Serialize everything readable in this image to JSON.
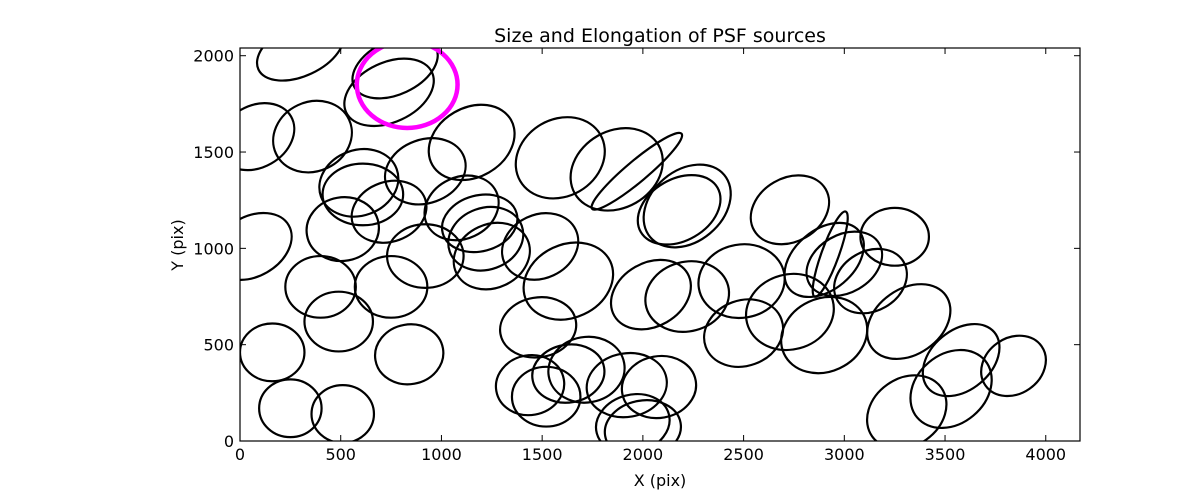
{
  "chart_data": {
    "type": "scatter",
    "marker": "ellipse",
    "title": "Size and Elongation of PSF sources",
    "xlabel": "X (pix)",
    "ylabel": "Y (pix)",
    "xlim": [
      0,
      4170
    ],
    "ylim": [
      0,
      2040
    ],
    "xticks": [
      0,
      500,
      1000,
      1500,
      2000,
      2500,
      3000,
      3500,
      4000
    ],
    "yticks": [
      0,
      500,
      1000,
      1500,
      2000
    ],
    "grid": false,
    "colors": {
      "sources": "#000000",
      "highlight": "#ff00ff"
    },
    "sources": [
      {
        "x": 300,
        "y": 2030,
        "w": 460,
        "h": 270,
        "angle": -25
      },
      {
        "x": 770,
        "y": 1940,
        "w": 450,
        "h": 280,
        "angle": -25
      },
      {
        "x": 740,
        "y": 1810,
        "w": 470,
        "h": 310,
        "angle": -25
      },
      {
        "x": 80,
        "y": 1580,
        "w": 400,
        "h": 320,
        "angle": -30
      },
      {
        "x": 360,
        "y": 1580,
        "w": 400,
        "h": 360,
        "angle": -25
      },
      {
        "x": 1150,
        "y": 1550,
        "w": 450,
        "h": 360,
        "angle": -30
      },
      {
        "x": 920,
        "y": 1400,
        "w": 410,
        "h": 330,
        "angle": -20
      },
      {
        "x": 590,
        "y": 1340,
        "w": 400,
        "h": 340,
        "angle": -20
      },
      {
        "x": 610,
        "y": 1280,
        "w": 400,
        "h": 320,
        "angle": 0
      },
      {
        "x": 740,
        "y": 1190,
        "w": 380,
        "h": 310,
        "angle": -20
      },
      {
        "x": 1100,
        "y": 1210,
        "w": 380,
        "h": 320,
        "angle": -25
      },
      {
        "x": 1190,
        "y": 1130,
        "w": 380,
        "h": 290,
        "angle": -15
      },
      {
        "x": 1220,
        "y": 1050,
        "w": 380,
        "h": 320,
        "angle": -20
      },
      {
        "x": 1250,
        "y": 960,
        "w": 390,
        "h": 330,
        "angle": -25
      },
      {
        "x": 510,
        "y": 1100,
        "w": 360,
        "h": 330,
        "angle": -10
      },
      {
        "x": 920,
        "y": 960,
        "w": 380,
        "h": 330,
        "angle": 0
      },
      {
        "x": 60,
        "y": 1010,
        "w": 420,
        "h": 310,
        "angle": -30
      },
      {
        "x": 400,
        "y": 800,
        "w": 350,
        "h": 320,
        "angle": 0
      },
      {
        "x": 750,
        "y": 800,
        "w": 360,
        "h": 320,
        "angle": 0
      },
      {
        "x": 490,
        "y": 620,
        "w": 340,
        "h": 310,
        "angle": 0
      },
      {
        "x": 1490,
        "y": 1010,
        "w": 390,
        "h": 330,
        "angle": -25
      },
      {
        "x": 1630,
        "y": 830,
        "w": 460,
        "h": 380,
        "angle": -25
      },
      {
        "x": 1480,
        "y": 590,
        "w": 380,
        "h": 310,
        "angle": -10
      },
      {
        "x": 1590,
        "y": 1470,
        "w": 460,
        "h": 400,
        "angle": -30
      },
      {
        "x": 1870,
        "y": 1410,
        "w": 480,
        "h": 400,
        "angle": -30
      },
      {
        "x": 1970,
        "y": 1400,
        "w": 580,
        "h": 110,
        "angle": -40
      },
      {
        "x": 2220,
        "y": 1220,
        "w": 480,
        "h": 370,
        "angle": -40
      },
      {
        "x": 2180,
        "y": 1200,
        "w": 440,
        "h": 320,
        "angle": -30
      },
      {
        "x": 2730,
        "y": 1200,
        "w": 410,
        "h": 330,
        "angle": -30
      },
      {
        "x": 3250,
        "y": 1060,
        "w": 340,
        "h": 300,
        "angle": 0
      },
      {
        "x": 2900,
        "y": 940,
        "w": 450,
        "h": 310,
        "angle": -40
      },
      {
        "x": 2930,
        "y": 970,
        "w": 450,
        "h": 90,
        "angle": -70
      },
      {
        "x": 3000,
        "y": 920,
        "w": 400,
        "h": 300,
        "angle": -30
      },
      {
        "x": 3130,
        "y": 830,
        "w": 380,
        "h": 310,
        "angle": -30
      },
      {
        "x": 2040,
        "y": 760,
        "w": 420,
        "h": 330,
        "angle": -30
      },
      {
        "x": 2220,
        "y": 750,
        "w": 420,
        "h": 360,
        "angle": -15
      },
      {
        "x": 2490,
        "y": 830,
        "w": 430,
        "h": 380,
        "angle": -10
      },
      {
        "x": 2500,
        "y": 560,
        "w": 400,
        "h": 340,
        "angle": -20
      },
      {
        "x": 2730,
        "y": 670,
        "w": 440,
        "h": 390,
        "angle": -15
      },
      {
        "x": 2900,
        "y": 550,
        "w": 440,
        "h": 380,
        "angle": -25
      },
      {
        "x": 3320,
        "y": 620,
        "w": 450,
        "h": 340,
        "angle": -35
      },
      {
        "x": 3580,
        "y": 420,
        "w": 430,
        "h": 310,
        "angle": -40
      },
      {
        "x": 3530,
        "y": 270,
        "w": 440,
        "h": 360,
        "angle": -40
      },
      {
        "x": 3840,
        "y": 390,
        "w": 340,
        "h": 290,
        "angle": -35
      },
      {
        "x": 3310,
        "y": 150,
        "w": 420,
        "h": 350,
        "angle": -35
      },
      {
        "x": 160,
        "y": 460,
        "w": 320,
        "h": 300,
        "angle": 0
      },
      {
        "x": 250,
        "y": 170,
        "w": 310,
        "h": 300,
        "angle": 0
      },
      {
        "x": 510,
        "y": 140,
        "w": 310,
        "h": 300,
        "angle": 0
      },
      {
        "x": 840,
        "y": 450,
        "w": 340,
        "h": 310,
        "angle": -10
      },
      {
        "x": 1440,
        "y": 290,
        "w": 340,
        "h": 310,
        "angle": -10
      },
      {
        "x": 1520,
        "y": 230,
        "w": 340,
        "h": 310,
        "angle": 0
      },
      {
        "x": 1630,
        "y": 350,
        "w": 360,
        "h": 300,
        "angle": -10
      },
      {
        "x": 1720,
        "y": 370,
        "w": 380,
        "h": 340,
        "angle": -10
      },
      {
        "x": 1920,
        "y": 290,
        "w": 400,
        "h": 330,
        "angle": -10
      },
      {
        "x": 2080,
        "y": 280,
        "w": 370,
        "h": 320,
        "angle": -10
      },
      {
        "x": 1950,
        "y": 90,
        "w": 370,
        "h": 300,
        "angle": -15
      },
      {
        "x": 2000,
        "y": 60,
        "w": 380,
        "h": 300,
        "angle": -10
      }
    ],
    "highlight": {
      "x": 830,
      "y": 1850,
      "w": 500,
      "h": 450,
      "angle": 0
    }
  }
}
